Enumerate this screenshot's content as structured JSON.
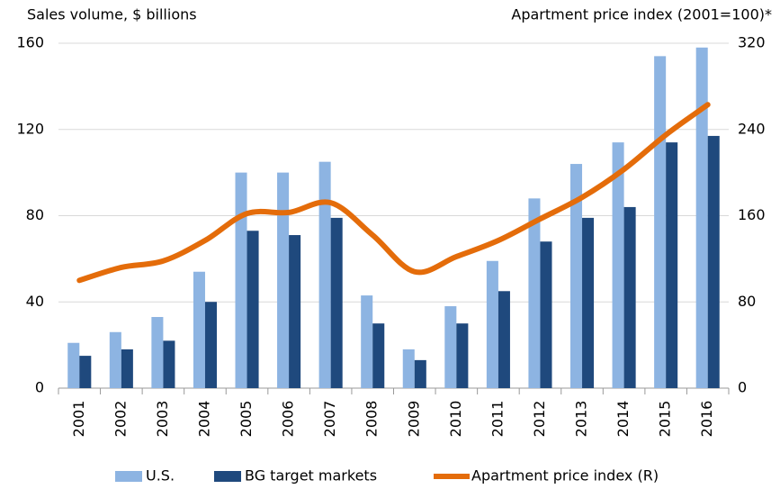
{
  "chart_data": {
    "type": "bar_line",
    "y_title": "Sales volume, $ billions",
    "y2_title": "Apartment price index (2001=100)*",
    "categories": [
      "2001",
      "2002",
      "2003",
      "2004",
      "2005",
      "2006",
      "2007",
      "2008",
      "2009",
      "2010",
      "2011",
      "2012",
      "2013",
      "2014",
      "2015",
      "2016"
    ],
    "series": [
      {
        "name": "U.S.",
        "color": "#8db4e2",
        "values": [
          21,
          26,
          33,
          54,
          100,
          100,
          105,
          43,
          18,
          38,
          59,
          88,
          104,
          114,
          154,
          158
        ]
      },
      {
        "name": "BG target markets",
        "color": "#1f497d",
        "values": [
          15,
          18,
          22,
          40,
          73,
          71,
          79,
          30,
          13,
          30,
          45,
          68,
          79,
          84,
          114,
          117
        ]
      },
      {
        "name": "Apartment price index (R)",
        "color": "#e46c0a",
        "axis": "y2",
        "values": [
          100,
          112,
          118,
          137,
          162,
          163,
          172,
          142,
          108,
          122,
          137,
          157,
          177,
          203,
          235,
          263
        ]
      }
    ],
    "ylim": [
      0,
      160
    ],
    "yticks": [
      0,
      40,
      80,
      120,
      160
    ],
    "y2lim": [
      0,
      320
    ],
    "y2ticks": [
      0,
      80,
      160,
      240,
      320
    ],
    "grid": true,
    "legend": "bottom"
  }
}
